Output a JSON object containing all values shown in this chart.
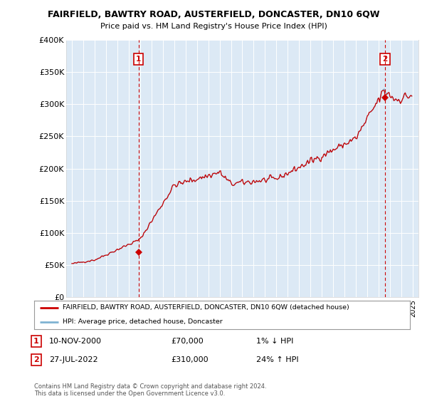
{
  "title": "FAIRFIELD, BAWTRY ROAD, AUSTERFIELD, DONCASTER, DN10 6QW",
  "subtitle": "Price paid vs. HM Land Registry's House Price Index (HPI)",
  "legend_line1": "FAIRFIELD, BAWTRY ROAD, AUSTERFIELD, DONCASTER, DN10 6QW (detached house)",
  "legend_line2": "HPI: Average price, detached house, Doncaster",
  "sale1_date": "10-NOV-2000",
  "sale1_price": 70000,
  "sale2_date": "27-JUL-2022",
  "sale2_price": 310000,
  "annotation1": "1",
  "annotation2": "2",
  "sale1_x": 2000.87,
  "sale2_x": 2022.57,
  "table_row1": [
    "1",
    "10-NOV-2000",
    "£70,000",
    "1% ↓ HPI"
  ],
  "table_row2": [
    "2",
    "27-JUL-2022",
    "£310,000",
    "24% ↑ HPI"
  ],
  "footer": "Contains HM Land Registry data © Crown copyright and database right 2024.\nThis data is licensed under the Open Government Licence v3.0.",
  "ylim": [
    0,
    400000
  ],
  "xlim": [
    1994.5,
    2025.5
  ],
  "plot_bg_color": "#dce9f5",
  "red_line_color": "#cc0000",
  "blue_line_color": "#7fb3d3",
  "dashed_color": "#cc0000",
  "marker_box_color": "#cc0000",
  "grid_color": "#ffffff",
  "yticks": [
    0,
    50000,
    100000,
    150000,
    200000,
    250000,
    300000,
    350000,
    400000
  ],
  "ylabels": [
    "£0",
    "£50K",
    "£100K",
    "£150K",
    "£200K",
    "£250K",
    "£300K",
    "£350K",
    "£400K"
  ]
}
